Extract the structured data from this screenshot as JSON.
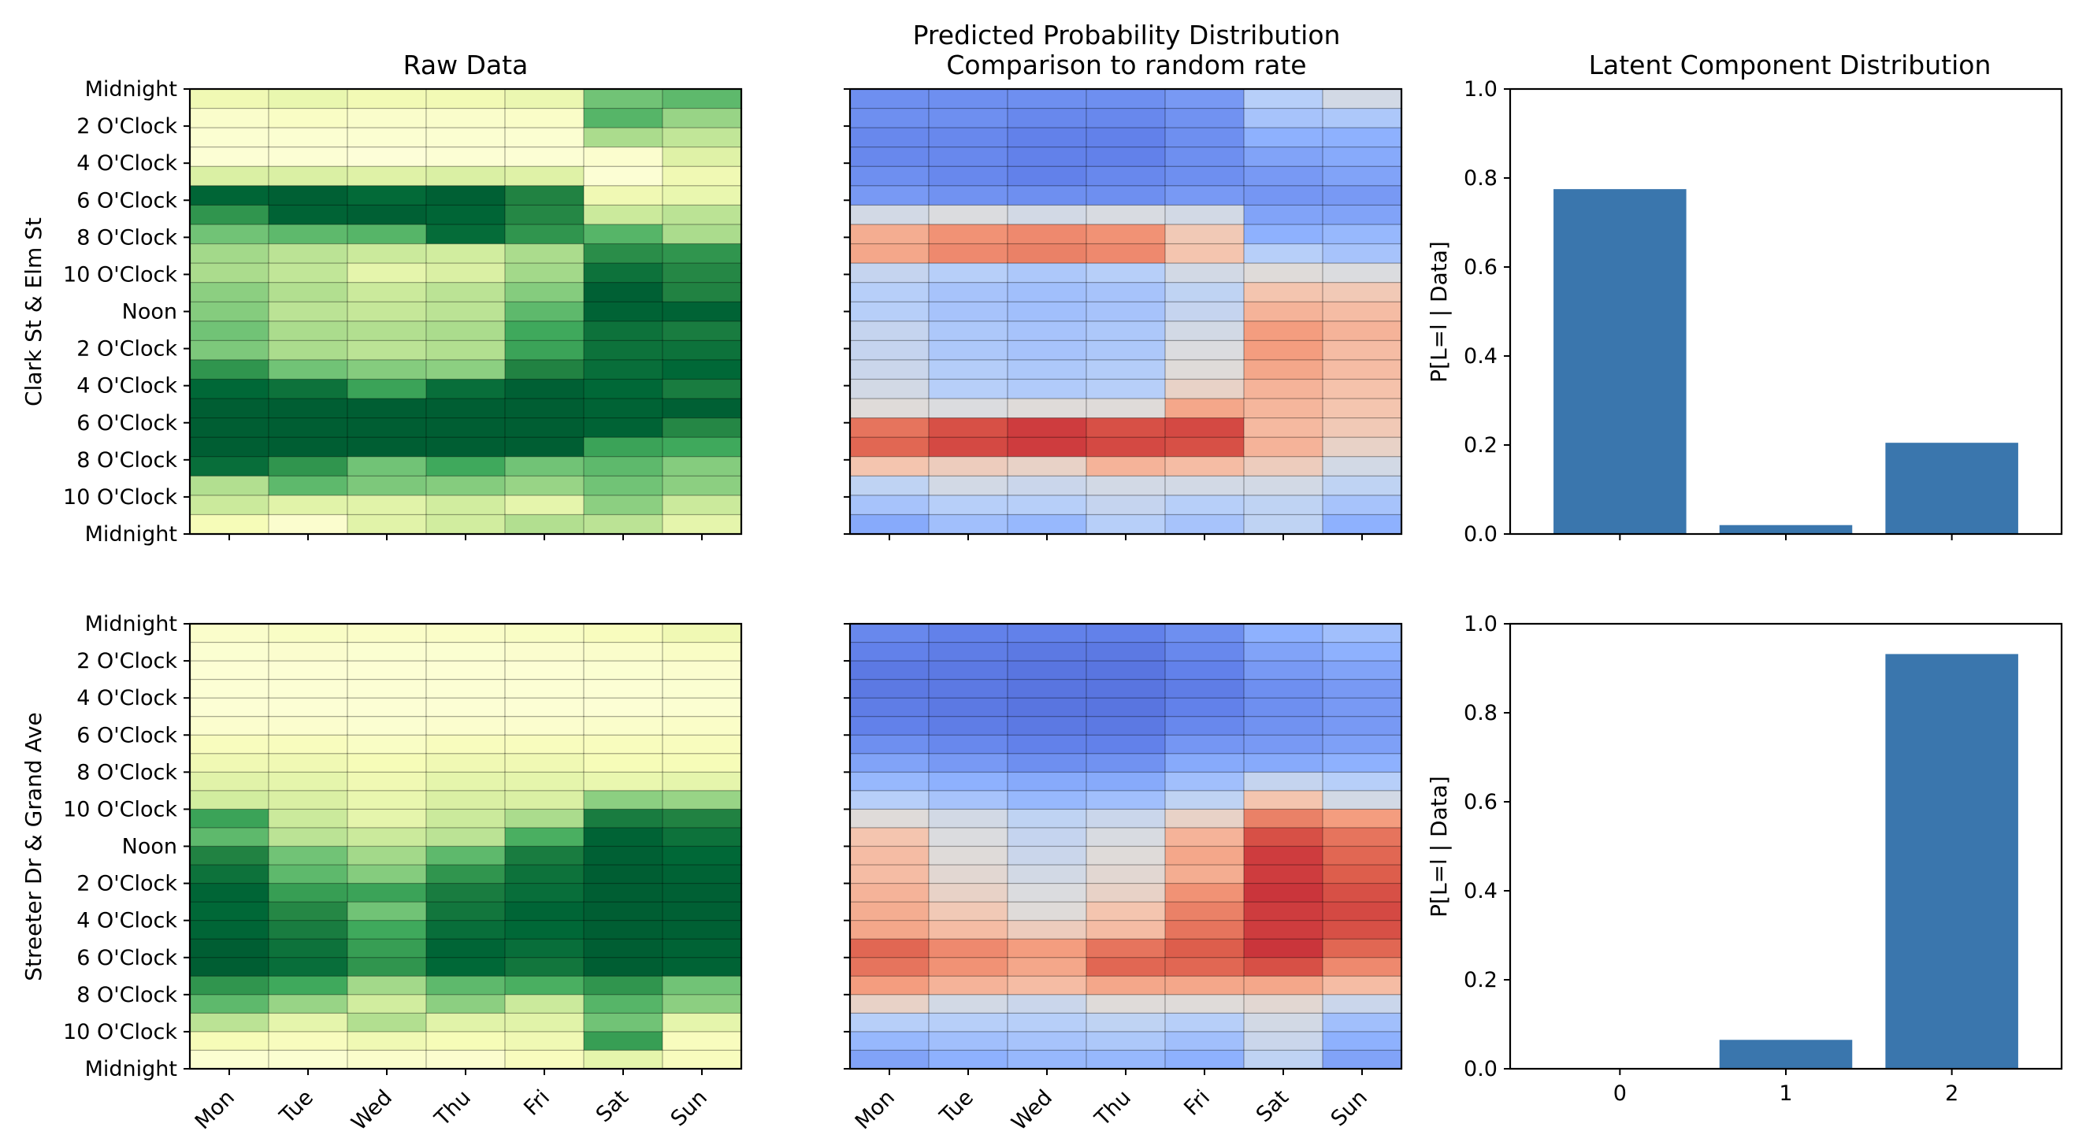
{
  "chart_data": [
    {
      "type": "heatmap",
      "panel": "raw-top",
      "title": "Raw Data",
      "ylabel": "Clark St & Elm St",
      "colormap": "YlGn",
      "xticklabels": [
        "Mon",
        "Tue",
        "Wed",
        "Thu",
        "Fri",
        "Sat",
        "Sun"
      ],
      "yticklabels": [
        "Midnight",
        "2 O'Clock",
        "4 O'Clock",
        "6 O'Clock",
        "8 O'Clock",
        "10 O'Clock",
        "Noon",
        "2 O'Clock",
        "4 O'Clock",
        "6 O'Clock",
        "8 O'Clock",
        "10 O'Clock",
        "Midnight"
      ],
      "show_xticklabels": false,
      "values": [
        [
          0.15,
          0.18,
          0.14,
          0.14,
          0.17,
          0.55,
          0.6
        ],
        [
          0.06,
          0.08,
          0.06,
          0.06,
          0.07,
          0.62,
          0.45
        ],
        [
          0.04,
          0.04,
          0.04,
          0.04,
          0.04,
          0.4,
          0.33
        ],
        [
          0.03,
          0.03,
          0.02,
          0.03,
          0.03,
          0.05,
          0.23
        ],
        [
          0.25,
          0.25,
          0.23,
          0.25,
          0.23,
          0.03,
          0.15
        ],
        [
          0.96,
          0.98,
          0.94,
          0.98,
          0.82,
          0.15,
          0.18
        ],
        [
          0.75,
          0.97,
          0.98,
          0.96,
          0.8,
          0.3,
          0.35
        ],
        [
          0.55,
          0.6,
          0.62,
          0.93,
          0.75,
          0.62,
          0.4
        ],
        [
          0.42,
          0.35,
          0.3,
          0.28,
          0.4,
          0.78,
          0.75
        ],
        [
          0.4,
          0.33,
          0.2,
          0.25,
          0.42,
          0.9,
          0.8
        ],
        [
          0.48,
          0.38,
          0.3,
          0.35,
          0.5,
          0.98,
          0.82
        ],
        [
          0.5,
          0.35,
          0.32,
          0.35,
          0.6,
          0.97,
          0.97
        ],
        [
          0.55,
          0.4,
          0.38,
          0.4,
          0.68,
          0.9,
          0.85
        ],
        [
          0.52,
          0.4,
          0.35,
          0.38,
          0.7,
          0.9,
          0.9
        ],
        [
          0.75,
          0.55,
          0.5,
          0.48,
          0.82,
          0.92,
          0.95
        ],
        [
          0.95,
          0.9,
          0.7,
          0.92,
          0.98,
          0.95,
          0.85
        ],
        [
          0.99,
          0.99,
          0.99,
          0.99,
          0.99,
          0.97,
          0.98
        ],
        [
          0.99,
          0.99,
          0.99,
          0.99,
          0.99,
          0.97,
          0.8
        ],
        [
          0.99,
          0.99,
          0.99,
          0.99,
          0.99,
          0.7,
          0.68
        ],
        [
          0.92,
          0.75,
          0.55,
          0.68,
          0.55,
          0.6,
          0.5
        ],
        [
          0.38,
          0.6,
          0.52,
          0.5,
          0.45,
          0.55,
          0.48
        ],
        [
          0.3,
          0.22,
          0.22,
          0.28,
          0.2,
          0.48,
          0.3
        ],
        [
          0.12,
          0.05,
          0.22,
          0.28,
          0.38,
          0.35,
          0.2
        ]
      ]
    },
    {
      "type": "heatmap",
      "panel": "pred-top",
      "title": "Predicted Probability Distribution\nComparison to random rate",
      "colormap": "coolwarm",
      "xticklabels": [
        "Mon",
        "Tue",
        "Wed",
        "Thu",
        "Fri",
        "Sat",
        "Sun"
      ],
      "show_xticklabels": false,
      "values": [
        [
          0.12,
          0.12,
          0.12,
          0.12,
          0.15,
          0.35,
          0.45
        ],
        [
          0.12,
          0.12,
          0.1,
          0.1,
          0.13,
          0.3,
          0.32
        ],
        [
          0.1,
          0.1,
          0.08,
          0.08,
          0.12,
          0.22,
          0.22
        ],
        [
          0.1,
          0.1,
          0.08,
          0.08,
          0.12,
          0.18,
          0.2
        ],
        [
          0.12,
          0.1,
          0.08,
          0.1,
          0.12,
          0.15,
          0.18
        ],
        [
          0.15,
          0.13,
          0.12,
          0.12,
          0.15,
          0.14,
          0.15
        ],
        [
          0.45,
          0.48,
          0.45,
          0.47,
          0.45,
          0.18,
          0.18
        ],
        [
          0.7,
          0.78,
          0.8,
          0.78,
          0.6,
          0.22,
          0.25
        ],
        [
          0.72,
          0.8,
          0.82,
          0.8,
          0.62,
          0.35,
          0.3
        ],
        [
          0.4,
          0.35,
          0.32,
          0.35,
          0.45,
          0.5,
          0.48
        ],
        [
          0.35,
          0.3,
          0.28,
          0.3,
          0.38,
          0.62,
          0.6
        ],
        [
          0.35,
          0.3,
          0.28,
          0.3,
          0.4,
          0.68,
          0.65
        ],
        [
          0.4,
          0.32,
          0.3,
          0.32,
          0.45,
          0.75,
          0.68
        ],
        [
          0.4,
          0.32,
          0.3,
          0.32,
          0.48,
          0.75,
          0.65
        ],
        [
          0.42,
          0.34,
          0.32,
          0.34,
          0.5,
          0.72,
          0.65
        ],
        [
          0.45,
          0.35,
          0.33,
          0.35,
          0.55,
          0.68,
          0.63
        ],
        [
          0.5,
          0.48,
          0.5,
          0.5,
          0.72,
          0.67,
          0.62
        ],
        [
          0.85,
          0.92,
          0.95,
          0.92,
          0.93,
          0.66,
          0.6
        ],
        [
          0.88,
          0.93,
          0.95,
          0.93,
          0.92,
          0.68,
          0.55
        ],
        [
          0.62,
          0.58,
          0.55,
          0.68,
          0.65,
          0.58,
          0.45
        ],
        [
          0.38,
          0.45,
          0.42,
          0.45,
          0.45,
          0.45,
          0.38
        ],
        [
          0.3,
          0.35,
          0.35,
          0.4,
          0.35,
          0.38,
          0.3
        ],
        [
          0.2,
          0.28,
          0.25,
          0.35,
          0.3,
          0.38,
          0.22
        ]
      ]
    },
    {
      "type": "bar",
      "panel": "latent-top",
      "title": "Latent Component Distribution",
      "ylabel": "P[L=l | Data]",
      "categories": [
        "0",
        "1",
        "2"
      ],
      "values": [
        0.775,
        0.02,
        0.205
      ],
      "ylim": [
        0,
        1.0
      ],
      "yticks": [
        "0.0",
        "0.2",
        "0.4",
        "0.6",
        "0.8",
        "1.0"
      ],
      "show_xticklabels": false
    },
    {
      "type": "heatmap",
      "panel": "raw-bottom",
      "ylabel": "Streeter Dr & Grand Ave",
      "colormap": "YlGn",
      "xticklabels": [
        "Mon",
        "Tue",
        "Wed",
        "Thu",
        "Fri",
        "Sat",
        "Sun"
      ],
      "yticklabels": [
        "Midnight",
        "2 O'Clock",
        "4 O'Clock",
        "6 O'Clock",
        "8 O'Clock",
        "10 O'Clock",
        "Noon",
        "2 O'Clock",
        "4 O'Clock",
        "6 O'Clock",
        "8 O'Clock",
        "10 O'Clock",
        "Midnight"
      ],
      "show_xticklabels": true,
      "values": [
        [
          0.06,
          0.08,
          0.07,
          0.07,
          0.08,
          0.1,
          0.15
        ],
        [
          0.04,
          0.05,
          0.04,
          0.04,
          0.05,
          0.06,
          0.08
        ],
        [
          0.03,
          0.03,
          0.03,
          0.03,
          0.03,
          0.04,
          0.05
        ],
        [
          0.03,
          0.03,
          0.03,
          0.03,
          0.03,
          0.03,
          0.04
        ],
        [
          0.03,
          0.03,
          0.03,
          0.03,
          0.03,
          0.03,
          0.04
        ],
        [
          0.05,
          0.05,
          0.04,
          0.05,
          0.05,
          0.06,
          0.07
        ],
        [
          0.1,
          0.1,
          0.08,
          0.1,
          0.1,
          0.1,
          0.1
        ],
        [
          0.15,
          0.15,
          0.12,
          0.15,
          0.15,
          0.12,
          0.12
        ],
        [
          0.22,
          0.2,
          0.15,
          0.2,
          0.2,
          0.18,
          0.2
        ],
        [
          0.28,
          0.25,
          0.18,
          0.25,
          0.25,
          0.48,
          0.45
        ],
        [
          0.7,
          0.3,
          0.2,
          0.3,
          0.4,
          0.85,
          0.82
        ],
        [
          0.6,
          0.35,
          0.3,
          0.35,
          0.65,
          0.97,
          0.9
        ],
        [
          0.82,
          0.55,
          0.42,
          0.6,
          0.85,
          0.98,
          0.95
        ],
        [
          0.9,
          0.6,
          0.5,
          0.75,
          0.9,
          0.99,
          0.97
        ],
        [
          0.96,
          0.72,
          0.7,
          0.85,
          0.92,
          0.99,
          0.98
        ],
        [
          0.95,
          0.8,
          0.55,
          0.88,
          0.96,
          0.99,
          0.98
        ],
        [
          0.96,
          0.85,
          0.68,
          0.92,
          0.95,
          0.99,
          0.98
        ],
        [
          0.99,
          0.9,
          0.72,
          0.96,
          0.92,
          0.99,
          0.97
        ],
        [
          0.99,
          0.92,
          0.75,
          0.95,
          0.88,
          0.99,
          0.97
        ],
        [
          0.75,
          0.68,
          0.42,
          0.6,
          0.65,
          0.75,
          0.55
        ],
        [
          0.6,
          0.45,
          0.28,
          0.48,
          0.3,
          0.62,
          0.48
        ],
        [
          0.35,
          0.2,
          0.38,
          0.22,
          0.22,
          0.55,
          0.2
        ],
        [
          0.12,
          0.1,
          0.15,
          0.12,
          0.15,
          0.72,
          0.1
        ],
        [
          0.04,
          0.04,
          0.06,
          0.05,
          0.1,
          0.2,
          0.1
        ]
      ]
    },
    {
      "type": "heatmap",
      "panel": "pred-bottom",
      "colormap": "coolwarm",
      "xticklabels": [
        "Mon",
        "Tue",
        "Wed",
        "Thu",
        "Fri",
        "Sat",
        "Sun"
      ],
      "show_xticklabels": true,
      "values": [
        [
          0.1,
          0.08,
          0.08,
          0.08,
          0.12,
          0.22,
          0.28
        ],
        [
          0.08,
          0.07,
          0.06,
          0.06,
          0.1,
          0.18,
          0.22
        ],
        [
          0.06,
          0.06,
          0.05,
          0.05,
          0.08,
          0.15,
          0.18
        ],
        [
          0.06,
          0.06,
          0.05,
          0.05,
          0.07,
          0.12,
          0.15
        ],
        [
          0.07,
          0.06,
          0.05,
          0.05,
          0.08,
          0.12,
          0.15
        ],
        [
          0.08,
          0.07,
          0.06,
          0.06,
          0.1,
          0.13,
          0.15
        ],
        [
          0.12,
          0.1,
          0.08,
          0.08,
          0.14,
          0.15,
          0.17
        ],
        [
          0.18,
          0.15,
          0.12,
          0.13,
          0.2,
          0.2,
          0.22
        ],
        [
          0.25,
          0.22,
          0.2,
          0.2,
          0.28,
          0.4,
          0.35
        ],
        [
          0.35,
          0.3,
          0.25,
          0.28,
          0.38,
          0.62,
          0.45
        ],
        [
          0.5,
          0.45,
          0.38,
          0.42,
          0.55,
          0.82,
          0.75
        ],
        [
          0.62,
          0.48,
          0.4,
          0.47,
          0.68,
          0.92,
          0.85
        ],
        [
          0.65,
          0.5,
          0.42,
          0.5,
          0.72,
          0.95,
          0.88
        ],
        [
          0.65,
          0.52,
          0.45,
          0.52,
          0.7,
          0.95,
          0.9
        ],
        [
          0.68,
          0.55,
          0.48,
          0.55,
          0.78,
          0.96,
          0.92
        ],
        [
          0.7,
          0.6,
          0.5,
          0.62,
          0.82,
          0.95,
          0.93
        ],
        [
          0.72,
          0.65,
          0.58,
          0.65,
          0.85,
          0.95,
          0.92
        ],
        [
          0.88,
          0.8,
          0.75,
          0.85,
          0.9,
          0.96,
          0.88
        ],
        [
          0.85,
          0.78,
          0.72,
          0.88,
          0.88,
          0.92,
          0.8
        ],
        [
          0.75,
          0.68,
          0.65,
          0.72,
          0.72,
          0.72,
          0.65
        ],
        [
          0.55,
          0.45,
          0.42,
          0.5,
          0.5,
          0.52,
          0.42
        ],
        [
          0.35,
          0.35,
          0.35,
          0.38,
          0.35,
          0.45,
          0.28
        ],
        [
          0.25,
          0.28,
          0.3,
          0.32,
          0.28,
          0.42,
          0.22
        ],
        [
          0.18,
          0.22,
          0.25,
          0.25,
          0.22,
          0.38,
          0.18
        ]
      ]
    },
    {
      "type": "bar",
      "panel": "latent-bottom",
      "ylabel": "P[L=l | Data]",
      "categories": [
        "0",
        "1",
        "2"
      ],
      "values": [
        0.0,
        0.065,
        0.932
      ],
      "ylim": [
        0,
        1.0
      ],
      "yticks": [
        "0.0",
        "0.2",
        "0.4",
        "0.6",
        "0.8",
        "1.0"
      ],
      "show_xticklabels": true
    }
  ]
}
